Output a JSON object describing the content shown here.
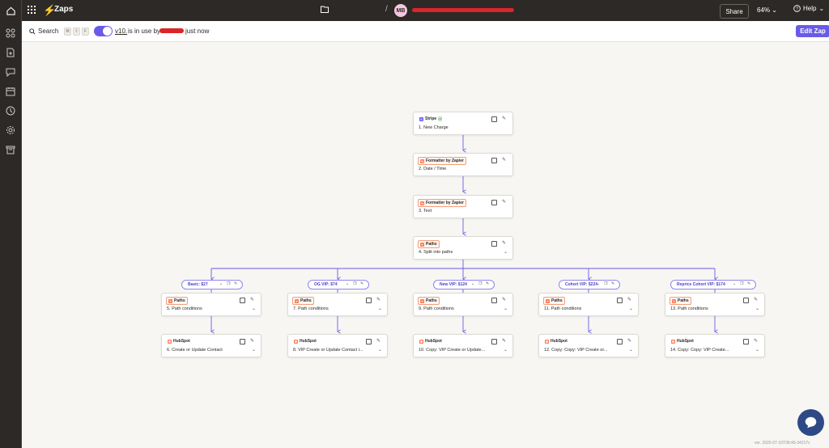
{
  "topbar": {
    "app_title": "Zaps",
    "folder_name": "",
    "separator": "/",
    "avatar_initials": "MB",
    "share_label": "Share",
    "zoom_label": "64%",
    "help_label": "Help"
  },
  "toolbar": {
    "search_label": "Search",
    "shortcut_keys": [
      "⌘",
      "⇧",
      "F"
    ],
    "version_label": "v10.",
    "in_use_text": "is in use by",
    "tail_text": "just now",
    "edit_label": "Edit Zap"
  },
  "steps": {
    "s1": {
      "app": "Stripe",
      "label": "1. New Charge"
    },
    "s2": {
      "app": "Formatter by Zapier",
      "label": "2. Date / Time"
    },
    "s3": {
      "app": "Formatter by Zapier",
      "label": "3. Text"
    },
    "s4": {
      "app": "Paths",
      "label": "4. Split into paths"
    }
  },
  "paths": [
    {
      "name": "Basic: $27",
      "cond": {
        "app": "Paths",
        "label": "5. Path conditions"
      },
      "action": {
        "app": "HubSpot",
        "label": "6. Create or Update Contact"
      }
    },
    {
      "name": "OG VIP: $74",
      "cond": {
        "app": "Paths",
        "label": "7. Path conditions"
      },
      "action": {
        "app": "HubSpot",
        "label": "8. VIP Create or Update Contact i..."
      }
    },
    {
      "name": "New VIP: $124",
      "cond": {
        "app": "Paths",
        "label": "9. Path conditions"
      },
      "action": {
        "app": "HubSpot",
        "label": "10. Copy: VIP Create or Update..."
      }
    },
    {
      "name": "Cohort VIP: $224",
      "cond": {
        "app": "Paths",
        "label": "11. Path conditions"
      },
      "action": {
        "app": "HubSpot",
        "label": "12. Copy: Copy: VIP Create or..."
      }
    },
    {
      "name": "Reprice Cohort VIP: $174",
      "cond": {
        "app": "Paths",
        "label": "13. Path conditions"
      },
      "action": {
        "app": "HubSpot",
        "label": "14. Copy: Copy: VIP Create..."
      }
    }
  ],
  "footer": {
    "version_text": "ver. 2025-07-10T08:49-34217c"
  },
  "colors": {
    "accent": "#695be8",
    "zapier_orange": "#ff6a2b",
    "dark": "#2d2926",
    "hubspot": "#ff7a59",
    "stripe": "#635bff"
  },
  "icons": [
    "home-icon",
    "apps-grid-icon",
    "zap-bolt-icon",
    "folder-icon",
    "help-icon",
    "search-icon",
    "copy-icon",
    "pencil-icon",
    "chevron-down-icon",
    "chat-icon"
  ]
}
